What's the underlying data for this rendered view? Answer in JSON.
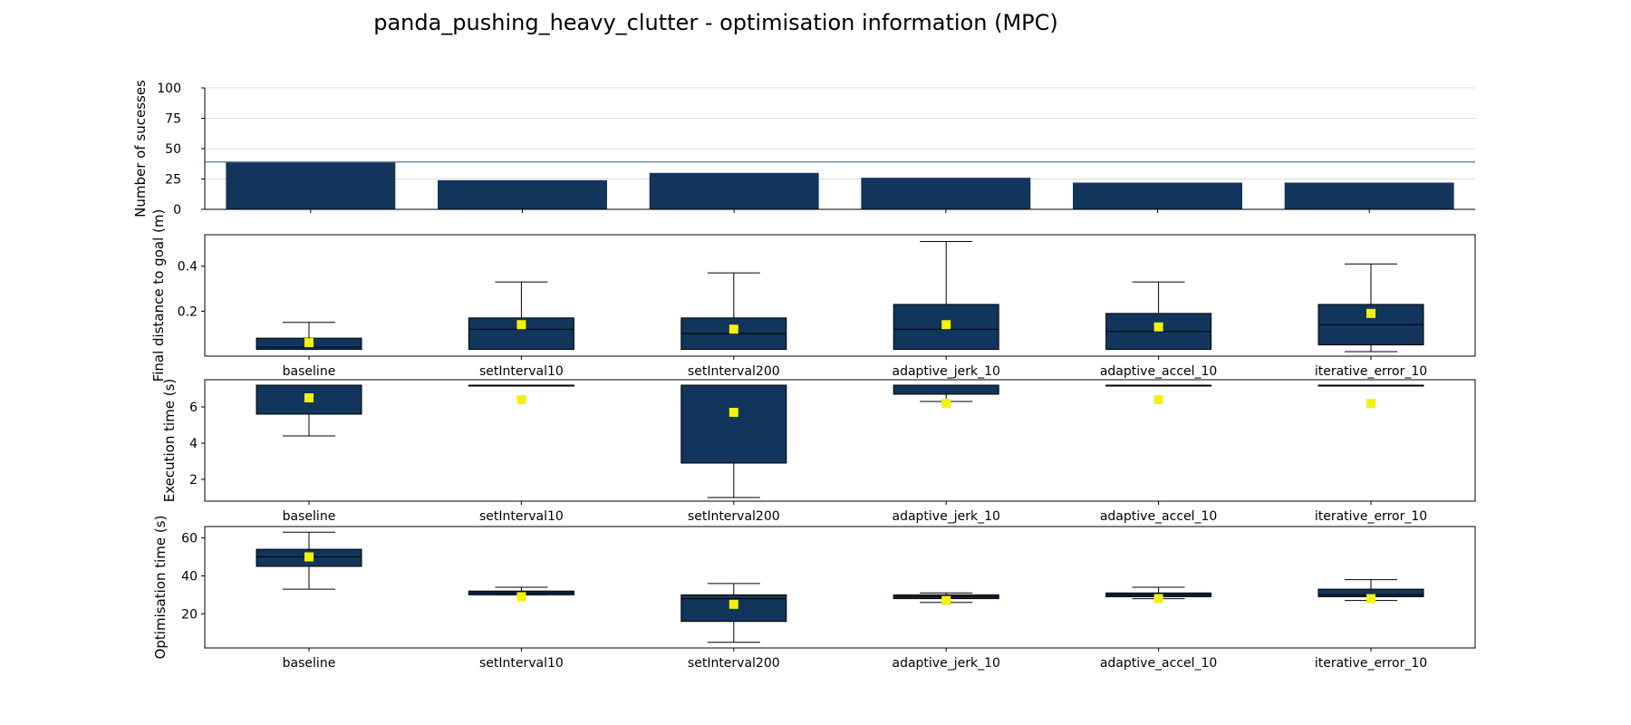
{
  "title": "panda_pushing_heavy_clutter - optimisation information (MPC)",
  "colors": {
    "box": "#12355b",
    "mean": "#f2f20a",
    "grid": "#dcdcdc",
    "hline": "#5b7a99"
  },
  "chart_data": [
    {
      "type": "bar",
      "ylabel": "Number of sucesses",
      "categories": [
        "baseline",
        "setInterval10",
        "setInterval200",
        "adaptive_jerk_10",
        "adaptive_accel_10",
        "iterative_error_10"
      ],
      "values": [
        39,
        24,
        30,
        26,
        22,
        22
      ],
      "ylim": [
        0,
        100
      ],
      "yticks": [
        0,
        25,
        50,
        75,
        100
      ],
      "reference_line": 39,
      "grid": true
    },
    {
      "type": "box",
      "ylabel": "Final distance to goal (m)",
      "categories": [
        "baseline",
        "setInterval10",
        "setInterval200",
        "adaptive_jerk_10",
        "adaptive_accel_10",
        "iterative_error_10"
      ],
      "ylim": [
        0.0,
        0.54
      ],
      "yticks": [
        "0.2",
        "0.4"
      ],
      "boxes": [
        {
          "whislo": 0.03,
          "q1": 0.03,
          "med": 0.04,
          "q3": 0.08,
          "whishi": 0.15,
          "mean": 0.06
        },
        {
          "whislo": 0.03,
          "q1": 0.03,
          "med": 0.12,
          "q3": 0.17,
          "whishi": 0.33,
          "mean": 0.14
        },
        {
          "whislo": 0.03,
          "q1": 0.03,
          "med": 0.1,
          "q3": 0.17,
          "whishi": 0.37,
          "mean": 0.12
        },
        {
          "whislo": 0.03,
          "q1": 0.03,
          "med": 0.12,
          "q3": 0.23,
          "whishi": 0.51,
          "mean": 0.14
        },
        {
          "whislo": 0.03,
          "q1": 0.03,
          "med": 0.11,
          "q3": 0.19,
          "whishi": 0.33,
          "mean": 0.13
        },
        {
          "whislo": 0.02,
          "q1": 0.05,
          "med": 0.14,
          "q3": 0.23,
          "whishi": 0.41,
          "mean": 0.19
        }
      ]
    },
    {
      "type": "box",
      "ylabel": "Execution time (s)",
      "categories": [
        "baseline",
        "setInterval10",
        "setInterval200",
        "adaptive_jerk_10",
        "adaptive_accel_10",
        "iterative_error_10"
      ],
      "ylim": [
        0.8,
        7.5
      ],
      "yticks": [
        "2",
        "4",
        "6"
      ],
      "boxes": [
        {
          "whislo": 4.4,
          "q1": 5.6,
          "med": 7.2,
          "q3": 7.2,
          "whishi": 7.2,
          "mean": 6.5
        },
        {
          "whislo": 7.2,
          "q1": 7.2,
          "med": 7.2,
          "q3": 7.2,
          "whishi": 7.2,
          "mean": 6.4
        },
        {
          "whislo": 1.0,
          "q1": 2.9,
          "med": 7.2,
          "q3": 7.2,
          "whishi": 7.2,
          "mean": 5.7
        },
        {
          "whislo": 6.3,
          "q1": 6.7,
          "med": 7.2,
          "q3": 7.2,
          "whishi": 7.2,
          "mean": 6.2
        },
        {
          "whislo": 7.2,
          "q1": 7.2,
          "med": 7.2,
          "q3": 7.2,
          "whishi": 7.2,
          "mean": 6.4
        },
        {
          "whislo": 7.2,
          "q1": 7.2,
          "med": 7.2,
          "q3": 7.2,
          "whishi": 7.2,
          "mean": 6.2
        }
      ]
    },
    {
      "type": "box",
      "ylabel": "Optimisation time (s)",
      "categories": [
        "baseline",
        "setInterval10",
        "setInterval200",
        "adaptive_jerk_10",
        "adaptive_accel_10",
        "iterative_error_10"
      ],
      "ylim": [
        2,
        66
      ],
      "yticks": [
        "20",
        "40",
        "60"
      ],
      "boxes": [
        {
          "whislo": 33,
          "q1": 45,
          "med": 50,
          "q3": 54,
          "whishi": 63,
          "mean": 50
        },
        {
          "whislo": 30,
          "q1": 30,
          "med": 31,
          "q3": 32,
          "whishi": 34,
          "mean": 29
        },
        {
          "whislo": 5,
          "q1": 16,
          "med": 28,
          "q3": 30,
          "whishi": 36,
          "mean": 25
        },
        {
          "whislo": 26,
          "q1": 28,
          "med": 29,
          "q3": 30,
          "whishi": 31,
          "mean": 27
        },
        {
          "whislo": 28,
          "q1": 29,
          "med": 30,
          "q3": 31,
          "whishi": 34,
          "mean": 28
        },
        {
          "whislo": 27,
          "q1": 29,
          "med": 30,
          "q3": 33,
          "whishi": 38,
          "mean": 28
        }
      ]
    }
  ]
}
